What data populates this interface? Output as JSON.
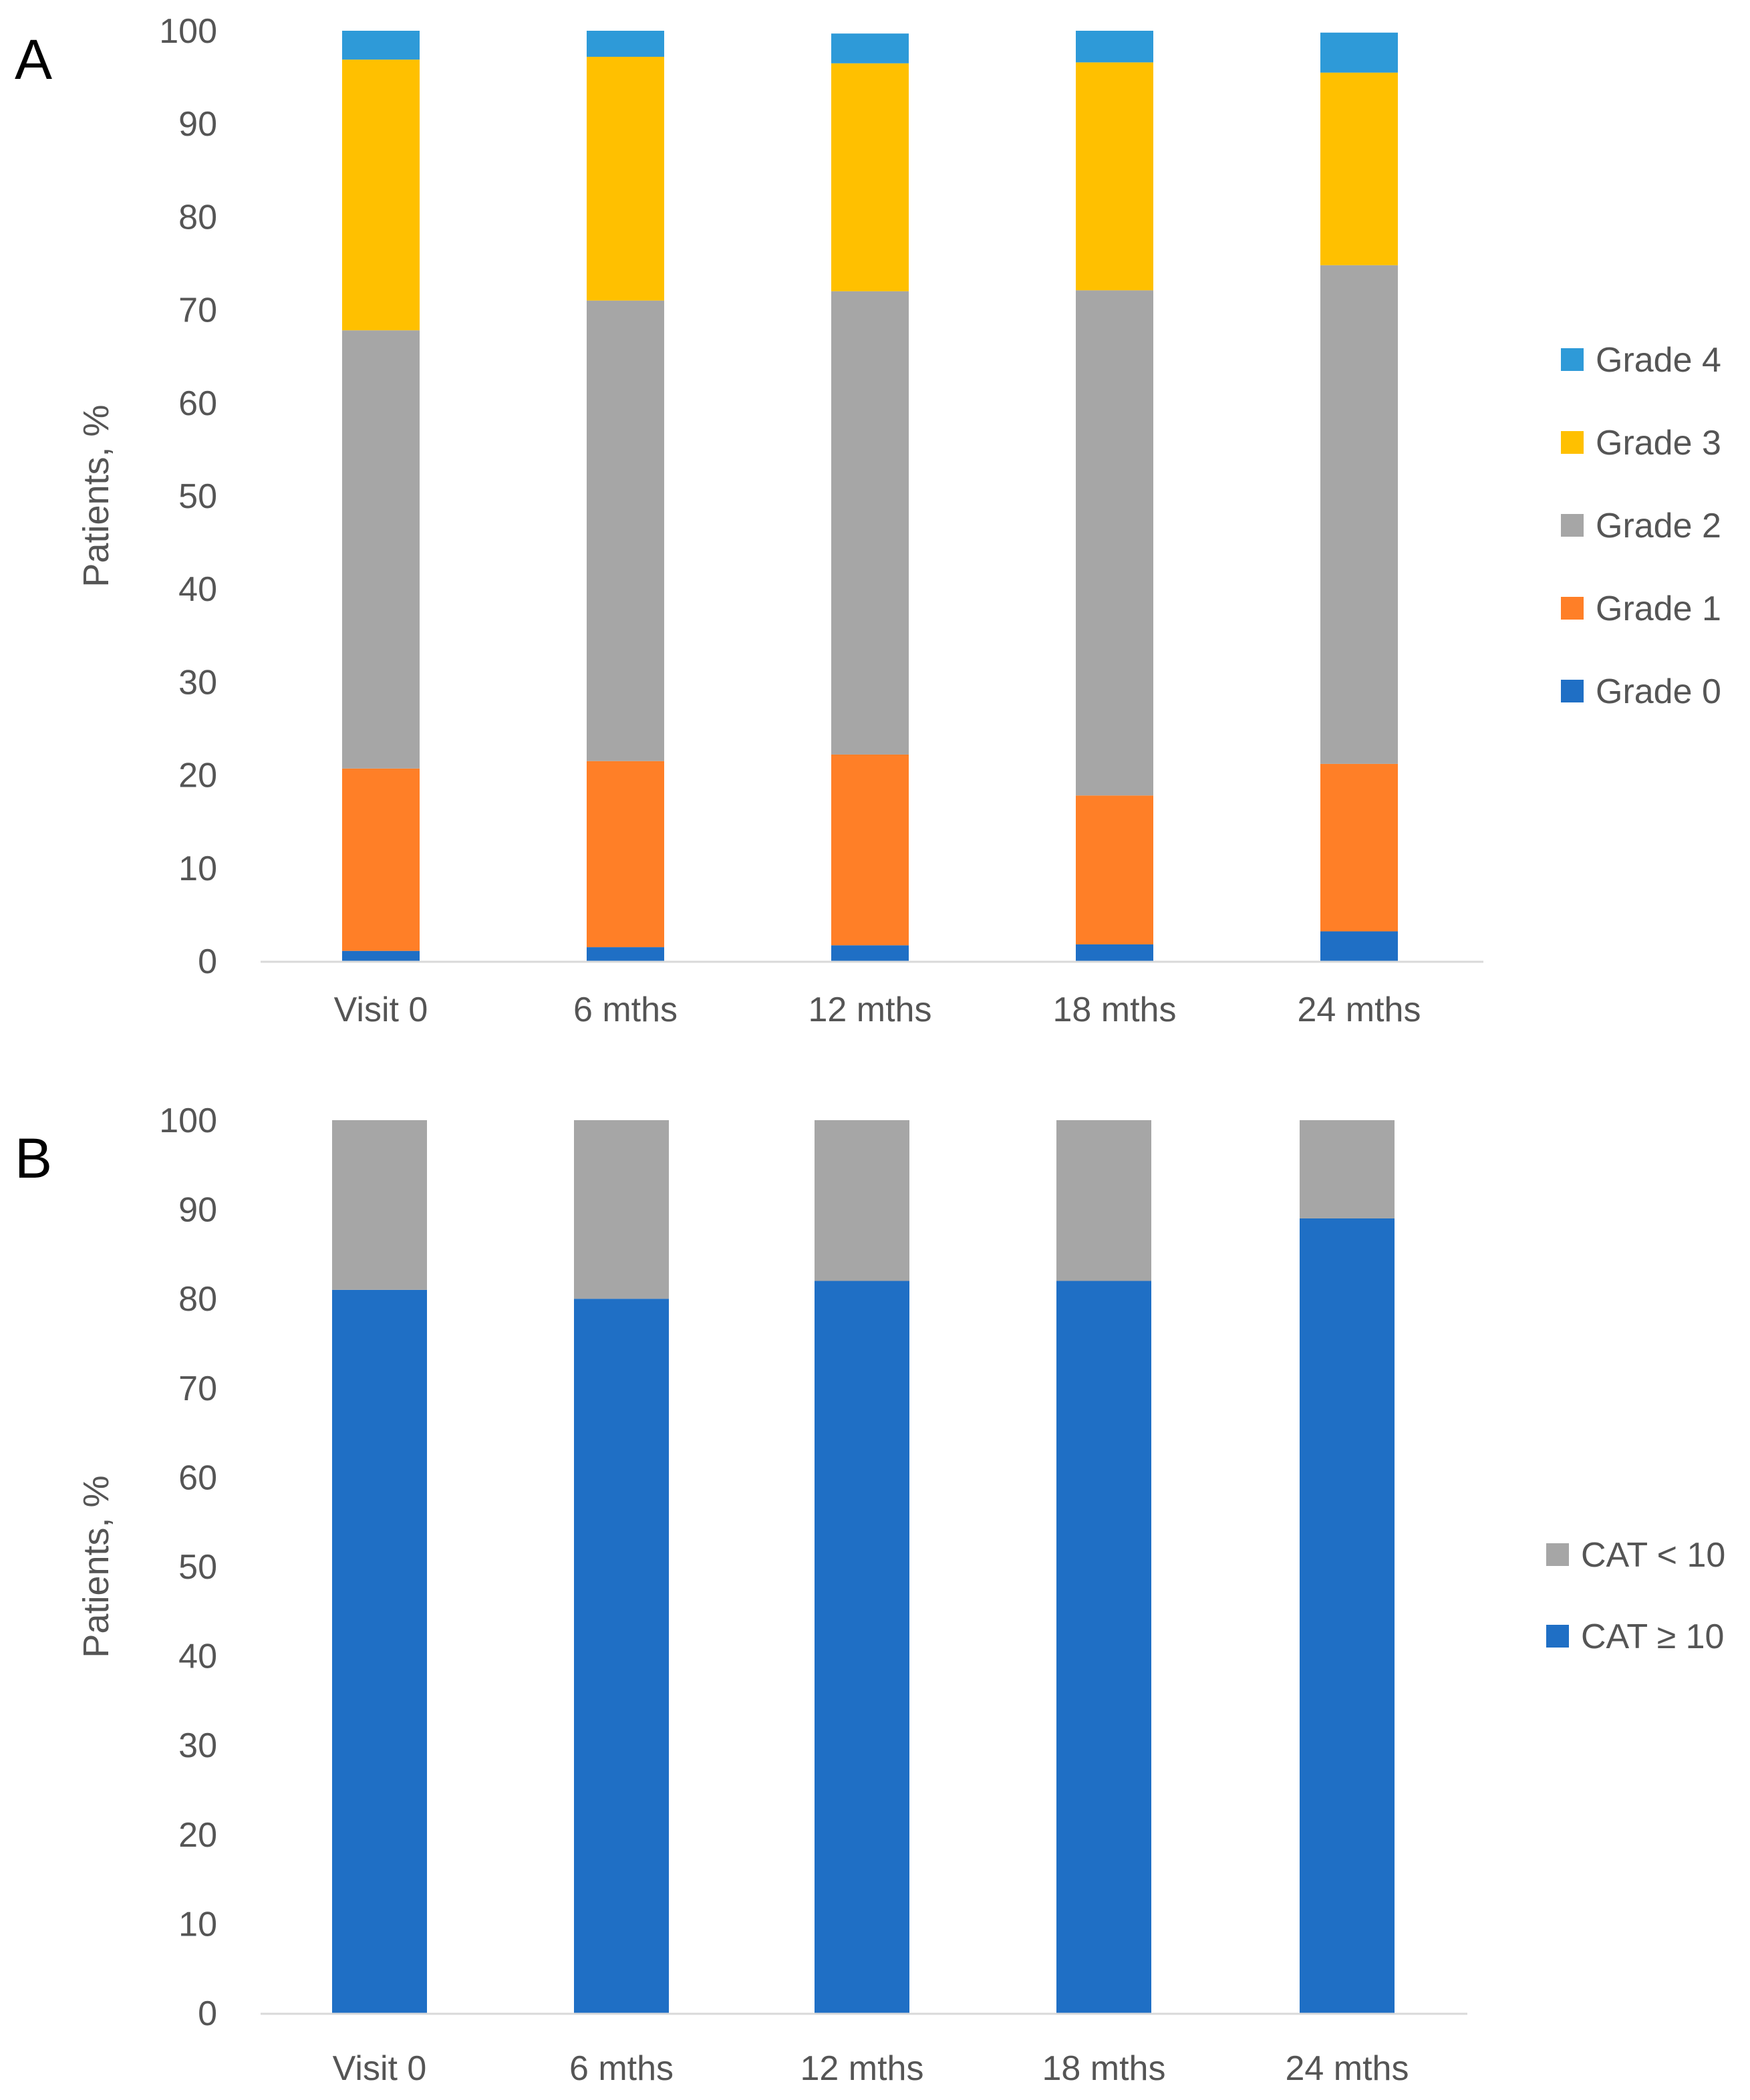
{
  "chart_data": [
    {
      "panel": "A",
      "type": "bar",
      "stacked": true,
      "title": "",
      "xlabel": "",
      "ylabel": "Patients, %",
      "ylim": [
        0,
        100
      ],
      "yticks": [
        0,
        10,
        20,
        30,
        40,
        50,
        60,
        70,
        80,
        90,
        100
      ],
      "categories": [
        "Visit 0",
        "6 mths",
        "12 mths",
        "18 mths",
        "24 mths"
      ],
      "series": [
        {
          "name": "Grade 0",
          "color": "#1f6fc5",
          "values": [
            1.1,
            1.5,
            1.7,
            1.8,
            3.2
          ]
        },
        {
          "name": "Grade 1",
          "color": "#ff7f27",
          "values": [
            19.6,
            20.0,
            20.5,
            16.0,
            18.0
          ]
        },
        {
          "name": "Grade 2",
          "color": "#a6a6a6",
          "values": [
            47.1,
            49.5,
            49.8,
            54.3,
            53.6
          ]
        },
        {
          "name": "Grade 3",
          "color": "#ffc000",
          "values": [
            29.1,
            26.2,
            24.5,
            24.5,
            20.7
          ]
        },
        {
          "name": "Grade 4",
          "color": "#2e9ad8",
          "values": [
            3.1,
            2.8,
            3.2,
            3.4,
            4.3
          ]
        }
      ],
      "legend_order": [
        "Grade 4",
        "Grade 3",
        "Grade 2",
        "Grade 1",
        "Grade 0"
      ],
      "legend_position": "right",
      "grid": false
    },
    {
      "panel": "B",
      "type": "bar",
      "stacked": true,
      "title": "",
      "xlabel": "",
      "ylabel": "Patients, %",
      "ylim": [
        0,
        100
      ],
      "yticks": [
        0,
        10,
        20,
        30,
        40,
        50,
        60,
        70,
        80,
        90,
        100
      ],
      "categories": [
        "Visit 0",
        "6 mths",
        "12 mths",
        "18 mths",
        "24 mths"
      ],
      "series": [
        {
          "name": "CAT ≥ 10",
          "color": "#1f6fc5",
          "values": [
            81,
            80,
            82,
            82,
            89
          ]
        },
        {
          "name": "CAT < 10",
          "color": "#a6a6a6",
          "values": [
            19,
            20,
            18,
            18,
            11
          ]
        }
      ],
      "legend_order": [
        "CAT < 10",
        "CAT ≥ 10"
      ],
      "legend_position": "right",
      "grid": false
    }
  ]
}
